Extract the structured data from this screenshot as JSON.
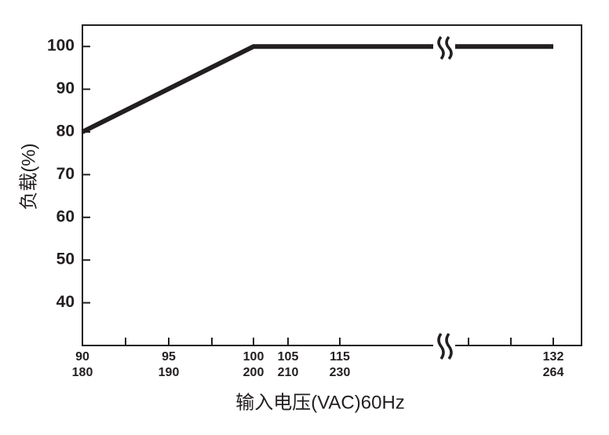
{
  "chart_data": {
    "type": "line",
    "x_label": "输入电压(VAC)60Hz",
    "y_label": "负载(%)",
    "series": [
      {
        "x": [
          90,
          100,
          132
        ],
        "values": [
          80,
          100,
          100
        ],
        "color": "#231f20"
      }
    ],
    "ylim": [
      30,
      105
    ],
    "yticks": [
      40,
      50,
      60,
      70,
      80,
      90,
      100
    ],
    "xticks": [
      90,
      95,
      100,
      105,
      115,
      132
    ],
    "x2ticks": [
      180,
      190,
      200,
      210,
      230,
      264
    ]
  }
}
